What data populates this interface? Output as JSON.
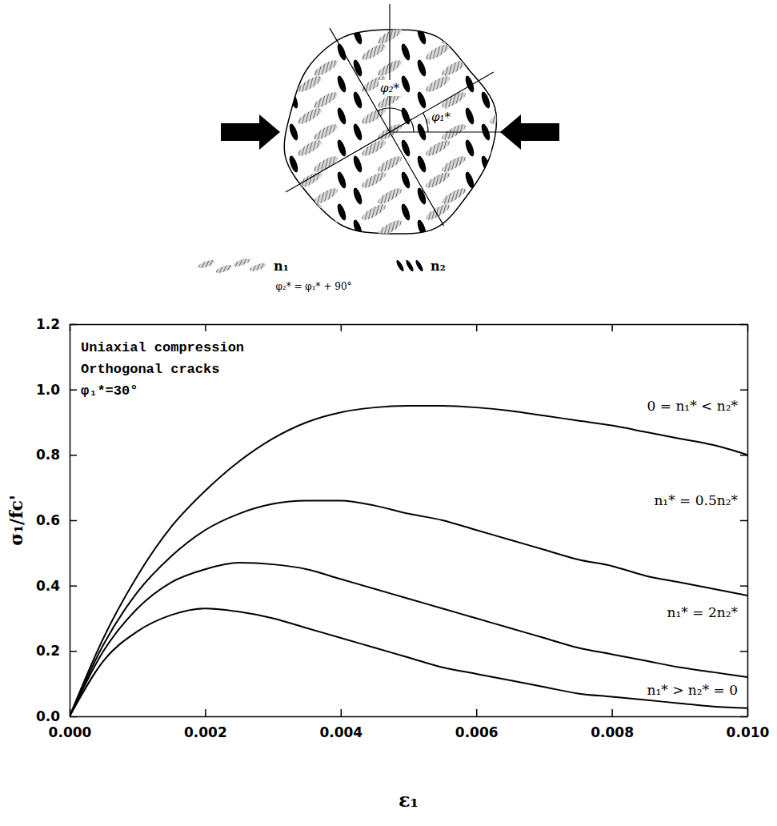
{
  "chart_data": {
    "type": "line",
    "annotations": [
      "Uniaxial compression",
      "Orthogonal cracks",
      "φ₁*=30°"
    ],
    "x_label": "ε₁",
    "y_label": "σ₁/fc'",
    "x": [
      0,
      0.0005,
      0.001,
      0.0015,
      0.002,
      0.0025,
      0.003,
      0.0035,
      0.004,
      0.0045,
      0.005,
      0.0055,
      0.006,
      0.0065,
      0.007,
      0.0075,
      0.008,
      0.0085,
      0.009,
      0.0095,
      0.01
    ],
    "series": [
      {
        "name": "0 = n₁* < n₂*",
        "color": "#000000",
        "line_style": "solid",
        "values": [
          0,
          0.24,
          0.43,
          0.58,
          0.69,
          0.78,
          0.85,
          0.9,
          0.93,
          0.945,
          0.95,
          0.95,
          0.945,
          0.935,
          0.92,
          0.905,
          0.89,
          0.87,
          0.85,
          0.83,
          0.8
        ]
      },
      {
        "name": "n₁* = 0.5n₂*",
        "color": "#000000",
        "line_style": "solid",
        "values": [
          0,
          0.22,
          0.38,
          0.49,
          0.57,
          0.62,
          0.65,
          0.66,
          0.66,
          0.645,
          0.62,
          0.6,
          0.57,
          0.54,
          0.51,
          0.48,
          0.46,
          0.43,
          0.41,
          0.39,
          0.37
        ]
      },
      {
        "name": "n₁* = 2n₂*",
        "color": "#000000",
        "line_style": "solid",
        "values": [
          0,
          0.2,
          0.33,
          0.41,
          0.45,
          0.47,
          0.465,
          0.45,
          0.42,
          0.39,
          0.36,
          0.33,
          0.3,
          0.27,
          0.24,
          0.21,
          0.19,
          0.17,
          0.15,
          0.135,
          0.12
        ]
      },
      {
        "name": "n₁* > n₂* = 0",
        "color": "#000000",
        "line_style": "solid",
        "values": [
          0,
          0.17,
          0.26,
          0.31,
          0.33,
          0.32,
          0.3,
          0.27,
          0.24,
          0.21,
          0.18,
          0.15,
          0.13,
          0.11,
          0.09,
          0.07,
          0.06,
          0.05,
          0.04,
          0.03,
          0.025
        ]
      }
    ],
    "xlim": [
      0,
      0.01
    ],
    "ylim": [
      0,
      1.2
    ],
    "xticks": [
      {
        "value": 0,
        "label": "0.000"
      },
      {
        "value": 0.002,
        "label": "0.002"
      },
      {
        "value": 0.004,
        "label": "0.004"
      },
      {
        "value": 0.006,
        "label": "0.006"
      },
      {
        "value": 0.008,
        "label": "0.008"
      },
      {
        "value": 0.01,
        "label": "0.010"
      }
    ],
    "yticks": [
      {
        "value": 0,
        "label": "0.0"
      },
      {
        "value": 0.2,
        "label": "0.2"
      },
      {
        "value": 0.4,
        "label": "0.4"
      },
      {
        "value": 0.6,
        "label": "0.6"
      },
      {
        "value": 0.8,
        "label": "0.8"
      },
      {
        "value": 1,
        "label": "1.0"
      },
      {
        "value": 1.2,
        "label": "1.2"
      }
    ],
    "grid": false
  },
  "diagram": {
    "angle_labels": [
      "φ₂*",
      "φ₁*"
    ],
    "legend": [
      "n₁",
      "n₂"
    ],
    "relation": "φ₂* = φ₁* + 90°"
  }
}
